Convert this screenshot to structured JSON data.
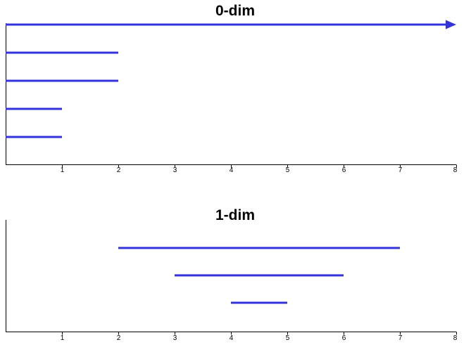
{
  "chart_data": [
    {
      "type": "persistence-barcode",
      "title": "0-dim",
      "xlim": [
        0,
        8
      ],
      "x_ticks": [
        1,
        2,
        3,
        4,
        5,
        6,
        7,
        8
      ],
      "color": "#3333dd",
      "bars": [
        {
          "birth": 0,
          "death": null,
          "infinite": true
        },
        {
          "birth": 0,
          "death": 2
        },
        {
          "birth": 0,
          "death": 2
        },
        {
          "birth": 0,
          "death": 1
        },
        {
          "birth": 0,
          "death": 1
        }
      ]
    },
    {
      "type": "persistence-barcode",
      "title": "1-dim",
      "xlim": [
        0,
        8
      ],
      "x_ticks": [
        1,
        2,
        3,
        4,
        5,
        6,
        7,
        8
      ],
      "color": "#3333dd",
      "bars": [
        {
          "birth": 2,
          "death": 7
        },
        {
          "birth": 3,
          "death": 6
        },
        {
          "birth": 4,
          "death": 5
        }
      ]
    }
  ]
}
